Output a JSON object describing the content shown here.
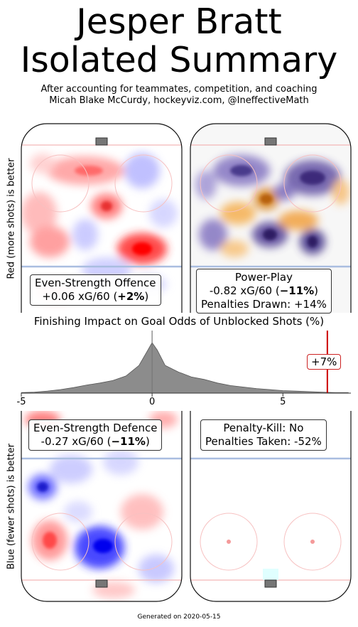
{
  "header": {
    "title_line1": "Jesper Bratt",
    "title_line2": "Isolated Summary",
    "subtitle_line1": "After accounting for teammates, competition, and coaching",
    "subtitle_line2": "Micah Blake McCurdy, hockeyviz.com, @IneffectiveMath"
  },
  "axis_labels": {
    "top_left": "Red (more shots) is better",
    "bottom_left": "Blue (fewer shots) is better"
  },
  "panels": {
    "ev_offence": {
      "line1": "Even-Strength Offence",
      "line2_prefix": "+0.06 xG/60 (",
      "line2_bold": "+2%",
      "line2_suffix": ")"
    },
    "power_play": {
      "line1": "Power-Play",
      "line2_prefix": "-0.82 xG/60 (",
      "line2_bold": "−11%",
      "line2_suffix": ")",
      "line3": "Penalties Drawn: +14%"
    },
    "ev_defence": {
      "line1": "Even-Strength Defence",
      "line2_prefix": "-0.27 xG/60 (",
      "line2_bold": "−11%",
      "line2_suffix": ")"
    },
    "penalty_kill": {
      "line1": "Penalty-Kill: No",
      "line2": "Penalties Taken: -52%"
    }
  },
  "finishing": {
    "title": "Finishing Impact on Goal Odds of Unblocked Shots (%)",
    "player_value_label": "+7%"
  },
  "chart_data": {
    "type": "area",
    "title": "Finishing Impact on Goal Odds of Unblocked Shots (%)",
    "xlim": [
      -5,
      7.6
    ],
    "xticks": [
      "-5",
      "0",
      "5"
    ],
    "x": [
      -5,
      -4.5,
      -4,
      -3.5,
      -3,
      -2.5,
      -2,
      -1.5,
      -1,
      -0.5,
      -0.2,
      0,
      0.2,
      0.5,
      1,
      1.5,
      2,
      2.5,
      3,
      3.5,
      4,
      4.5,
      5,
      5.5,
      6,
      6.5,
      7,
      7.5
    ],
    "density": [
      0.01,
      0.02,
      0.04,
      0.07,
      0.11,
      0.16,
      0.2,
      0.25,
      0.34,
      0.55,
      0.82,
      1.0,
      0.85,
      0.55,
      0.42,
      0.32,
      0.27,
      0.2,
      0.15,
      0.12,
      0.09,
      0.07,
      0.05,
      0.04,
      0.03,
      0.02,
      0.01,
      0.01
    ],
    "player_value": 6.7,
    "reference_line": 0,
    "colors": {
      "density_fill": "#8c8c8c",
      "player_line": "#cc0000",
      "reference_line": "#777777"
    }
  },
  "footer": {
    "generated": "Generated on 2020-05-15"
  }
}
